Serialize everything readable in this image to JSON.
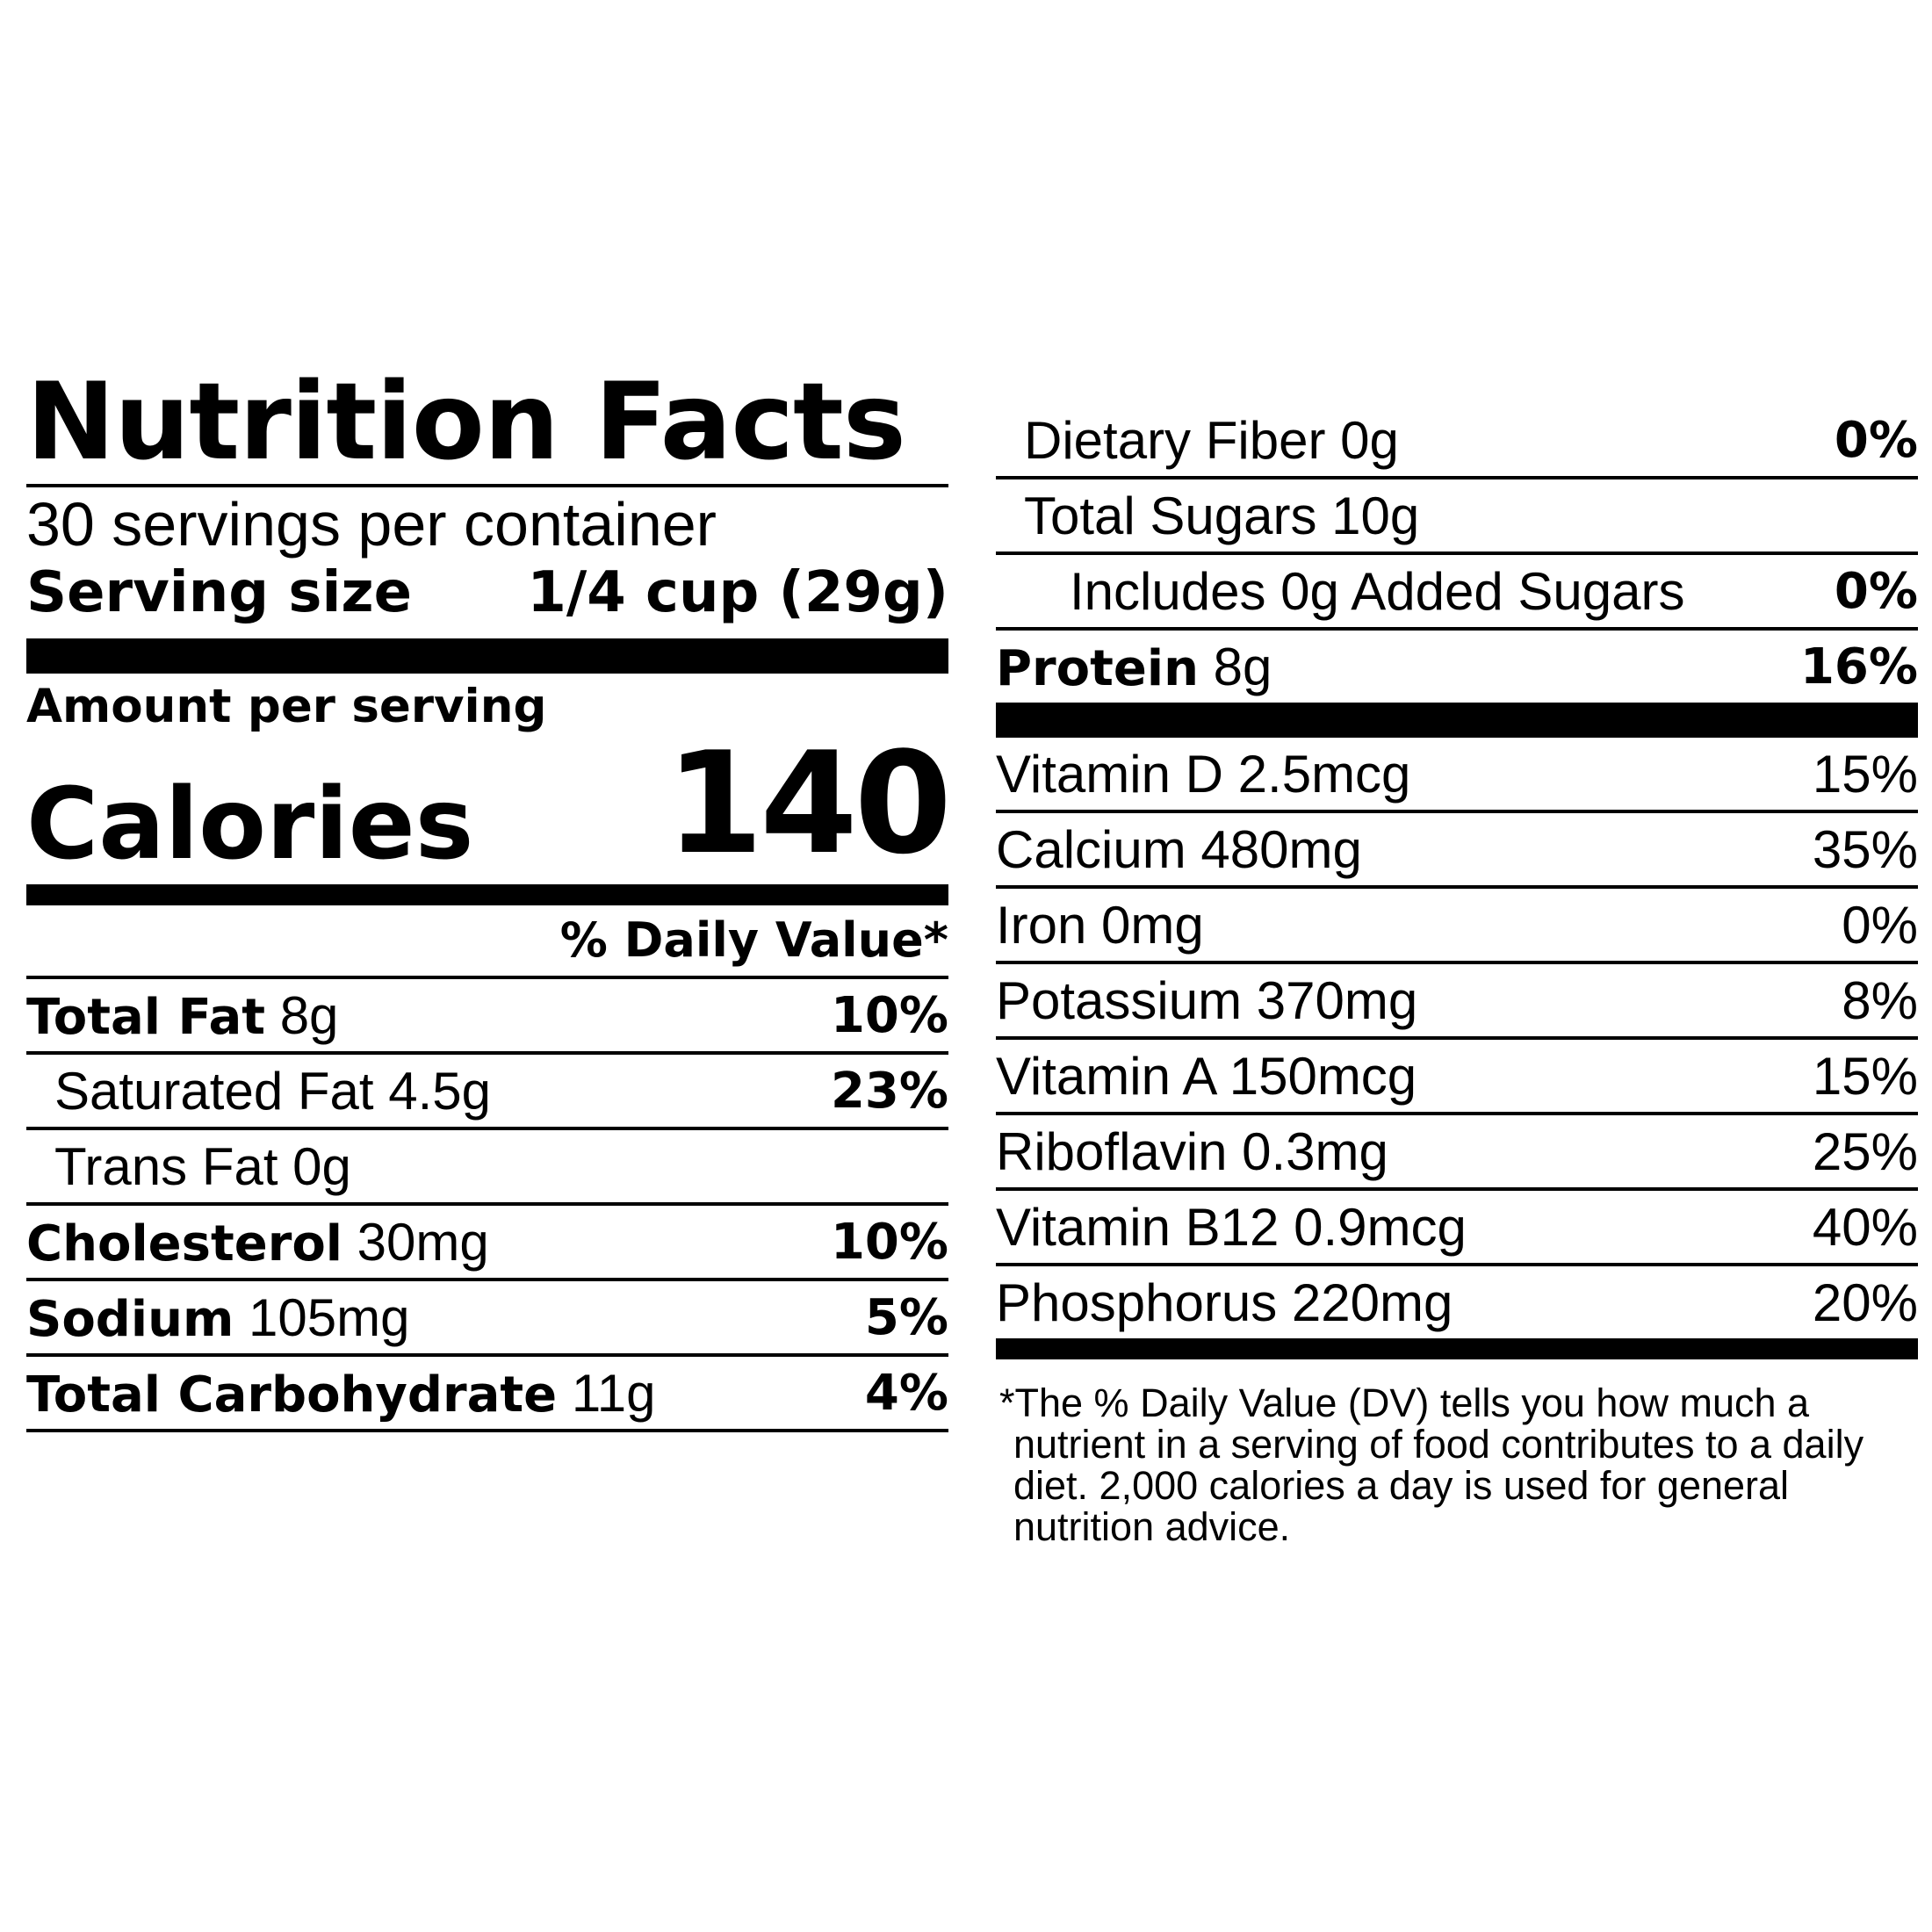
{
  "label": {
    "title": "Nutrition Facts",
    "servings_per_container": "30 servings per container",
    "serving_size_label": "Serving size",
    "serving_size_value": "1/4 cup (29g)",
    "amount_per_serving": "Amount per serving",
    "calories_label": "Calories",
    "calories_value": "140",
    "daily_value_header": "% Daily Value*",
    "nutrients": [
      {
        "name": "Total Fat",
        "amount": "8g",
        "dv": "10%"
      },
      {
        "name": "Saturated Fat 4.5g",
        "dv": "23%"
      },
      {
        "name": "Trans Fat 0g"
      },
      {
        "name": "Cholesterol",
        "amount": "30mg",
        "dv": "10%"
      },
      {
        "name": "Sodium",
        "amount": "105mg",
        "dv": "5%"
      },
      {
        "name": "Total Carbohydrate",
        "amount": "11g",
        "dv": "4%"
      },
      {
        "name": "Dietary Fiber 0g",
        "dv": "0%"
      },
      {
        "name": "Total Sugars 10g"
      },
      {
        "name": "Includes 0g Added Sugars",
        "dv": "0%"
      },
      {
        "name": "Protein",
        "amount": "8g",
        "dv": "16%"
      }
    ],
    "vitamins": [
      {
        "name": "Vitamin D 2.5mcg",
        "dv": "15%"
      },
      {
        "name": "Calcium 480mg",
        "dv": "35%"
      },
      {
        "name": "Iron 0mg",
        "dv": "0%"
      },
      {
        "name": "Potassium 370mg",
        "dv": "8%"
      },
      {
        "name": "Vitamin A 150mcg",
        "dv": "15%"
      },
      {
        "name": "Riboflavin 0.3mg",
        "dv": "25%"
      },
      {
        "name": "Vitamin B12 0.9mcg",
        "dv": "40%"
      },
      {
        "name": "Phosphorus 220mg",
        "dv": "20%"
      }
    ],
    "footnote": "*The % Daily Value (DV) tells you how much a nutrient in a serving of food contributes to a daily diet. 2,000 calories a day is used for general nutrition advice."
  }
}
